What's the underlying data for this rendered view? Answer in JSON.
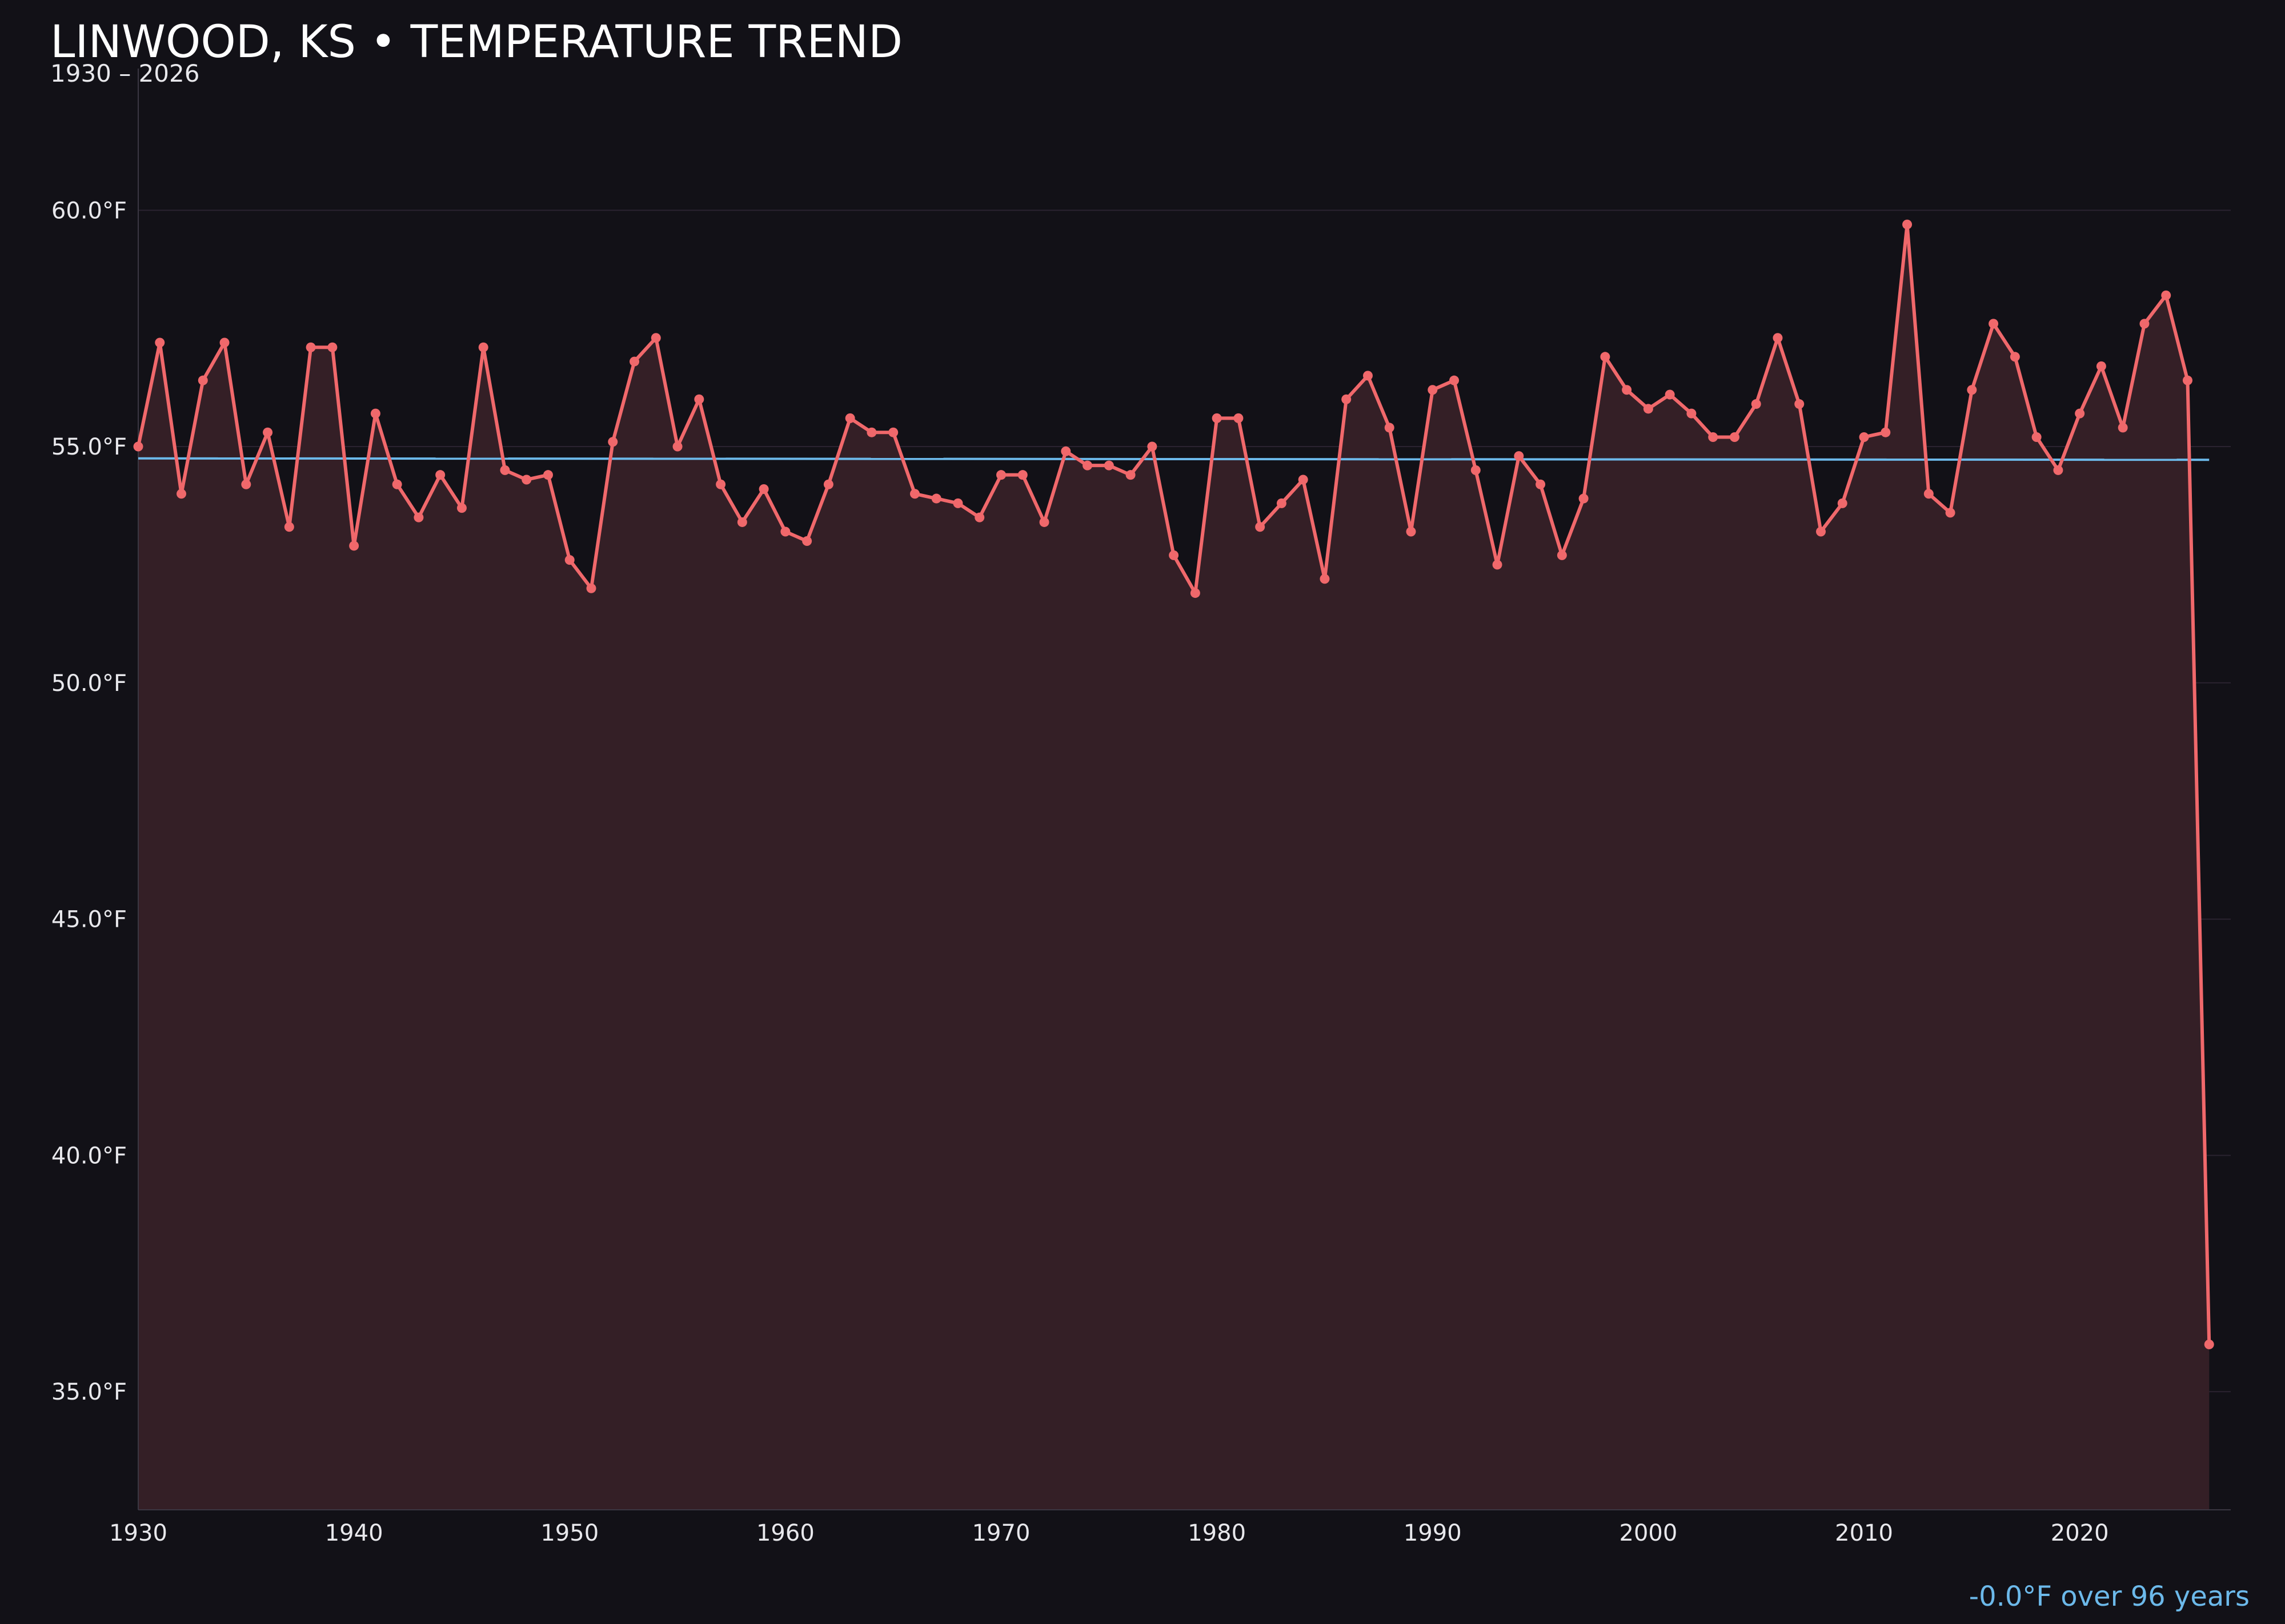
{
  "chart_data": {
    "type": "line",
    "title": "LINWOOD, KS • TEMPERATURE TREND",
    "subtitle": "1930 – 2026",
    "xlabel": "",
    "ylabel": "",
    "xlim": [
      1930,
      2027
    ],
    "ylim": [
      32.5,
      63
    ],
    "x_ticks": [
      1930,
      1940,
      1950,
      1960,
      1970,
      1980,
      1990,
      2000,
      2010,
      2020
    ],
    "x_tick_labels": [
      "1930",
      "1940",
      "1950",
      "1960",
      "1970",
      "1980",
      "1990",
      "2000",
      "2010",
      "2020"
    ],
    "y_ticks": [
      35,
      40,
      45,
      50,
      55,
      60
    ],
    "y_tick_labels": [
      "35.0°F",
      "40.0°F",
      "45.0°F",
      "50.0°F",
      "55.0°F",
      "60.0°F"
    ],
    "grid": "horizontal",
    "legend": "none",
    "series": [
      {
        "x": [
          1930,
          1931,
          1932,
          1933,
          1934,
          1935,
          1936,
          1937,
          1938,
          1939,
          1940,
          1941,
          1942,
          1943,
          1944,
          1945,
          1946,
          1947,
          1948,
          1949,
          1950,
          1951,
          1952,
          1953,
          1954,
          1955,
          1956,
          1957,
          1958,
          1959,
          1960,
          1961,
          1962,
          1963,
          1964,
          1965,
          1966,
          1967,
          1968,
          1969,
          1970,
          1971,
          1972,
          1973,
          1974,
          1975,
          1976,
          1977,
          1978,
          1979,
          1980,
          1981,
          1982,
          1983,
          1984,
          1985,
          1986,
          1987,
          1988,
          1989,
          1990,
          1991,
          1992,
          1993,
          1994,
          1995,
          1996,
          1997,
          1998,
          1999,
          2000,
          2001,
          2002,
          2003,
          2004,
          2005,
          2006,
          2007,
          2008,
          2009,
          2010,
          2011,
          2012,
          2013,
          2014,
          2015,
          2016,
          2017,
          2018,
          2019,
          2020,
          2021,
          2022,
          2023,
          2024,
          2025,
          2026
        ],
        "values": [
          55.0,
          57.2,
          54.0,
          56.4,
          57.2,
          54.2,
          55.3,
          53.3,
          57.1,
          57.1,
          52.9,
          55.7,
          54.2,
          53.5,
          54.4,
          53.7,
          57.1,
          54.5,
          54.3,
          54.4,
          52.6,
          52.0,
          55.1,
          56.8,
          57.3,
          55.0,
          56.0,
          54.2,
          53.4,
          54.1,
          53.2,
          53.0,
          54.2,
          55.6,
          55.3,
          55.3,
          54.0,
          53.9,
          53.8,
          53.5,
          54.4,
          54.4,
          53.4,
          54.9,
          54.6,
          54.6,
          54.4,
          55.0,
          52.7,
          51.9,
          55.6,
          55.6,
          53.3,
          53.8,
          54.3,
          52.2,
          56.0,
          56.5,
          55.4,
          53.2,
          56.2,
          56.4,
          54.5,
          52.5,
          54.8,
          54.2,
          52.7,
          53.9,
          56.9,
          56.2,
          55.8,
          56.1,
          55.7,
          55.2,
          55.2,
          55.9,
          57.3,
          55.9,
          53.2,
          53.8,
          55.2,
          55.3,
          59.7,
          54.0,
          53.6,
          56.2,
          57.6,
          56.9,
          55.2,
          54.5,
          55.7,
          56.7,
          55.4,
          57.6,
          58.2,
          56.4,
          36.0
        ],
        "color": "#f0686b"
      }
    ],
    "trend_line": {
      "x": [
        1930,
        2026
      ],
      "values": [
        54.75,
        54.72
      ],
      "color": "#6cb9ea"
    },
    "annotation": "-0.0°F over 96 years",
    "colors": {
      "background": "#121117",
      "area_fill": "#341f26",
      "series": "#f0686b",
      "trend": "#6cb9ea",
      "grid": "#2a2330",
      "axis": "#3a3742",
      "text": "#e8e8ec",
      "annotation": "#6cb9ea"
    }
  }
}
